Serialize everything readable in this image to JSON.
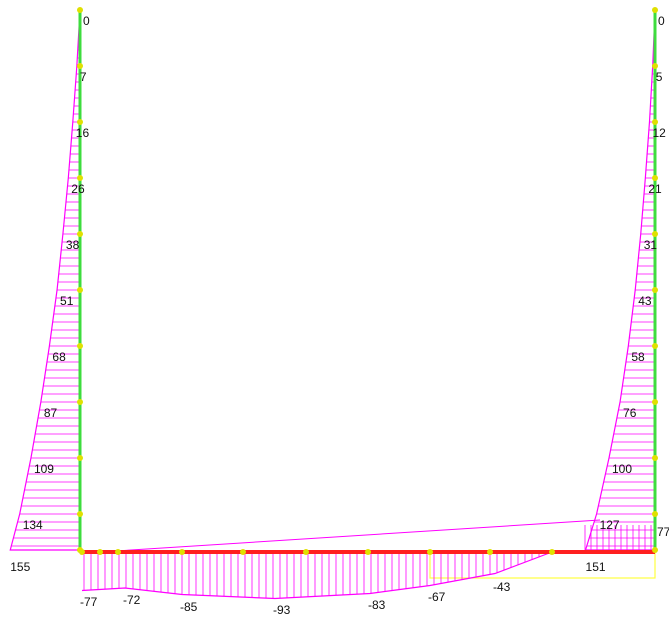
{
  "left_wall": {
    "labels": [
      0,
      7,
      16,
      26,
      38,
      51,
      68,
      87,
      109,
      134,
      155
    ]
  },
  "right_wall": {
    "labels": [
      0,
      5,
      12,
      21,
      31,
      43,
      58,
      76,
      100,
      127,
      151
    ],
    "end_label": 77
  },
  "slab": {
    "labels": [
      -77,
      -72,
      -85,
      -93,
      -83,
      -67,
      -43
    ]
  }
}
